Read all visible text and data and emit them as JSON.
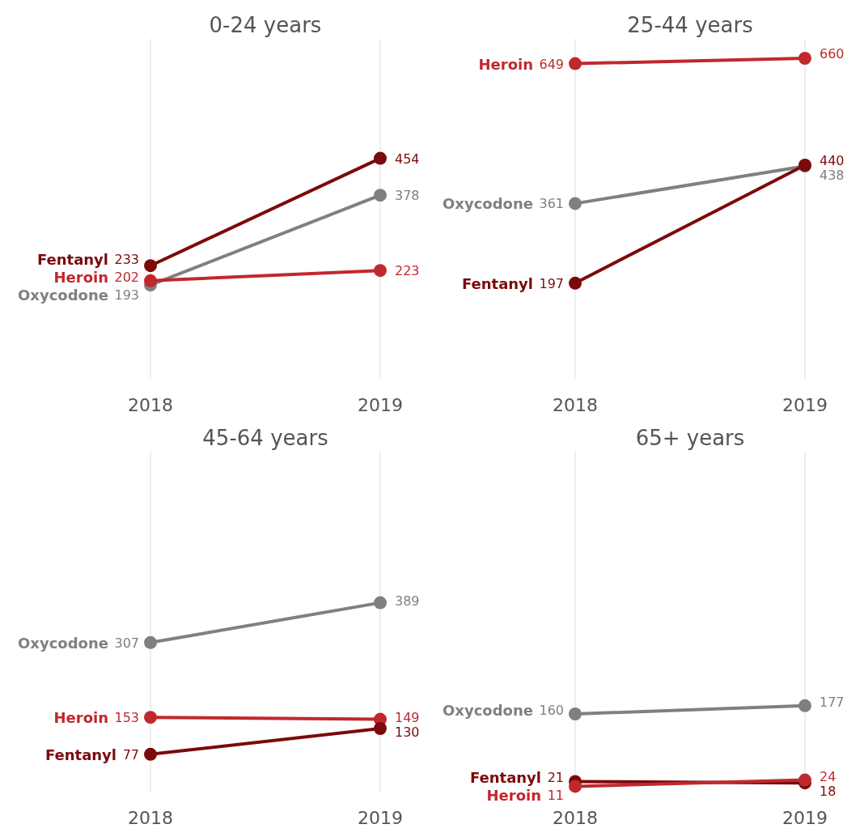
{
  "chart_data": [
    {
      "type": "line",
      "title": "0-24 years",
      "categories": [
        "2018",
        "2019"
      ],
      "ylim": [
        0,
        700
      ],
      "grid": "x",
      "tick_labels": "x",
      "data_labels": true,
      "marker": "circle",
      "series": [
        {
          "name": "Fentanyl",
          "color": "#7b0a0a",
          "values": [
            233,
            454
          ]
        },
        {
          "name": "Oxycodone",
          "color": "#808080",
          "values": [
            193,
            378
          ]
        },
        {
          "name": "Heroin",
          "color": "#c0282d",
          "values": [
            202,
            223
          ]
        }
      ]
    },
    {
      "type": "line",
      "title": "25-44 years",
      "categories": [
        "2018",
        "2019"
      ],
      "ylim": [
        0,
        700
      ],
      "grid": "x",
      "tick_labels": "x",
      "data_labels": true,
      "marker": "circle",
      "series": [
        {
          "name": "Heroin",
          "color": "#c0282d",
          "values": [
            649,
            660
          ]
        },
        {
          "name": "Oxycodone",
          "color": "#808080",
          "values": [
            361,
            438
          ]
        },
        {
          "name": "Fentanyl",
          "color": "#7b0a0a",
          "values": [
            197,
            440
          ]
        }
      ]
    },
    {
      "type": "line",
      "title": "45-64 years",
      "categories": [
        "2018",
        "2019"
      ],
      "ylim": [
        0,
        700
      ],
      "grid": "x",
      "tick_labels": "x",
      "data_labels": true,
      "marker": "circle",
      "series": [
        {
          "name": "Oxycodone",
          "color": "#808080",
          "values": [
            307,
            389
          ]
        },
        {
          "name": "Heroin",
          "color": "#c0282d",
          "values": [
            153,
            149
          ]
        },
        {
          "name": "Fentanyl",
          "color": "#7b0a0a",
          "values": [
            77,
            130
          ]
        }
      ]
    },
    {
      "type": "line",
      "title": "65+ years",
      "categories": [
        "2018",
        "2019"
      ],
      "ylim": [
        0,
        700
      ],
      "grid": "x",
      "tick_labels": "x",
      "data_labels": true,
      "marker": "circle",
      "series": [
        {
          "name": "Oxycodone",
          "color": "#808080",
          "values": [
            160,
            177
          ]
        },
        {
          "name": "Fentanyl",
          "color": "#7b0a0a",
          "values": [
            21,
            18
          ]
        },
        {
          "name": "Heroin",
          "color": "#c0282d",
          "values": [
            11,
            24
          ]
        }
      ]
    }
  ]
}
